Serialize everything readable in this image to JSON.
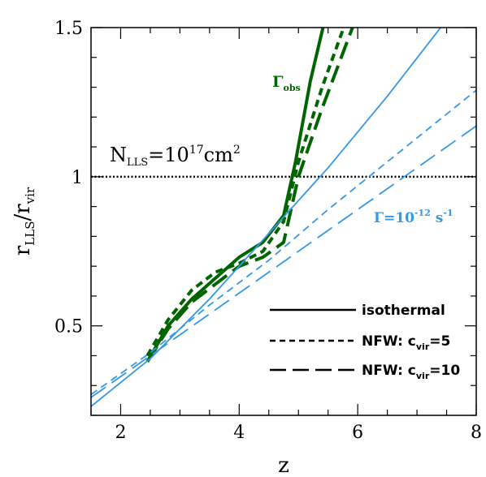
{
  "chart_data": {
    "type": "line",
    "xlabel": "z",
    "ylabel": {
      "base": "r",
      "sub": "LLS",
      "sep": "/",
      "base2": "r",
      "sub2": "vir"
    },
    "xlim": [
      1.5,
      8
    ],
    "ylim": [
      0.2,
      1.5
    ],
    "xticks": [
      2,
      4,
      6,
      8
    ],
    "yticks": [
      0.5,
      1,
      1.5
    ],
    "xtick_labels": [
      "2",
      "4",
      "6",
      "8"
    ],
    "ytick_labels": [
      "0.5",
      "1",
      "1.5"
    ],
    "grid": false,
    "reference_line": {
      "y": 1.0,
      "style": "dotted",
      "color": "#000000"
    },
    "annotations": {
      "nlls": {
        "base": "N",
        "sub": "LLS",
        "eq": "=10",
        "sup": "17",
        "unit": "cm",
        "unit_sup": "2"
      },
      "gamma_obs": {
        "base": "Γ",
        "sub": "obs"
      },
      "gamma_uv": {
        "base": "Γ=10",
        "sup": "-12",
        "unit": " s",
        "unit_sup": "-1"
      }
    },
    "legend": {
      "placement": "bottom-right",
      "entries": [
        {
          "label": "isothermal",
          "style": "solid"
        },
        {
          "label_base": "NFW:  c",
          "label_sub": "vir",
          "label_tail": "=5",
          "style": "short-dash"
        },
        {
          "label_base": "NFW:  c",
          "label_sub": "vir",
          "label_tail": "=10",
          "style": "long-dash"
        }
      ]
    },
    "colors": {
      "green": "#006400",
      "blue": "#3399e6"
    },
    "series": [
      {
        "group": "Gamma_obs",
        "style": "solid",
        "color": "#006400",
        "x": [
          2.45,
          2.8,
          3.2,
          3.6,
          4.0,
          4.4,
          4.75,
          4.95,
          5.2,
          5.45
        ],
        "y": [
          0.38,
          0.5,
          0.59,
          0.66,
          0.73,
          0.78,
          0.87,
          1.05,
          1.32,
          1.53
        ]
      },
      {
        "group": "Gamma_obs",
        "style": "short-dash",
        "color": "#006400",
        "x": [
          2.45,
          2.8,
          3.2,
          3.6,
          4.0,
          4.4,
          4.75,
          5.0,
          5.4,
          5.8
        ],
        "y": [
          0.4,
          0.52,
          0.62,
          0.68,
          0.71,
          0.75,
          0.85,
          1.05,
          1.3,
          1.52
        ]
      },
      {
        "group": "Gamma_obs",
        "style": "long-dash",
        "color": "#006400",
        "x": [
          2.45,
          2.8,
          3.2,
          3.6,
          4.0,
          4.4,
          4.75,
          5.0,
          5.4,
          5.95
        ],
        "y": [
          0.38,
          0.49,
          0.58,
          0.64,
          0.7,
          0.73,
          0.78,
          1.0,
          1.23,
          1.52
        ]
      },
      {
        "group": "Gamma_uv",
        "style": "solid",
        "color": "#3399e6",
        "x": [
          1.5,
          2.5,
          3.5,
          4.5,
          5.5,
          6.5,
          7.4
        ],
        "y": [
          0.23,
          0.39,
          0.59,
          0.81,
          1.03,
          1.27,
          1.5
        ]
      },
      {
        "group": "Gamma_uv",
        "style": "short-dash",
        "color": "#3399e6",
        "x": [
          1.5,
          2.5,
          3.5,
          4.5,
          5.5,
          6.5,
          8.0
        ],
        "y": [
          0.27,
          0.41,
          0.57,
          0.72,
          0.89,
          1.05,
          1.29
        ]
      },
      {
        "group": "Gamma_uv",
        "style": "long-dash",
        "color": "#3399e6",
        "x": [
          1.5,
          2.5,
          3.5,
          4.5,
          5.5,
          6.5,
          8.0
        ],
        "y": [
          0.26,
          0.4,
          0.54,
          0.68,
          0.82,
          0.96,
          1.17
        ]
      }
    ]
  }
}
